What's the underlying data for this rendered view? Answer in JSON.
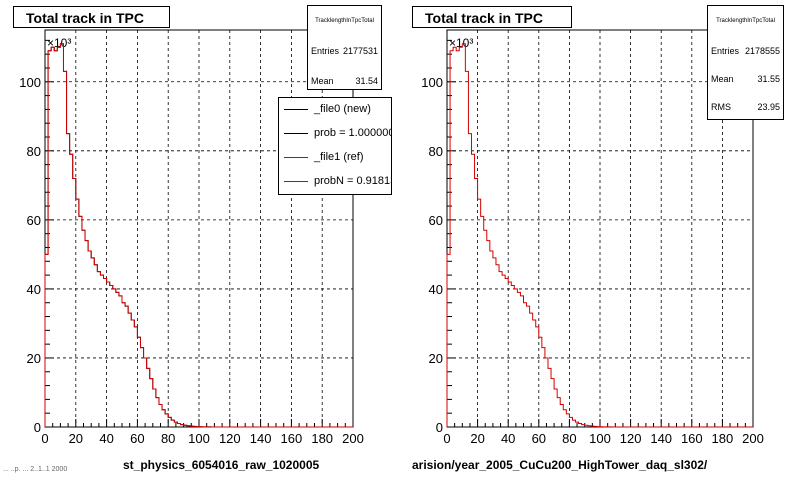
{
  "chart_data": [
    {
      "type": "histogram",
      "title": "Total track in TPC",
      "stats": {
        "name": "TracklengthInTpcTotal",
        "entries_label": "Entries",
        "entries": "2177531",
        "mean_label": "Mean",
        "mean": "31.54"
      },
      "legend": [
        {
          "label": "_file0 (new)",
          "color": "#000000"
        },
        {
          "label": "prob = 1.000000",
          "color": "#000000"
        },
        {
          "label": "_file1 (ref)",
          "color": "#d40000"
        },
        {
          "label": "probN = 0.918137",
          "color": "#d40000"
        }
      ],
      "xlabel": "st_physics_6054016_raw_1020005",
      "xlim": [
        0,
        200
      ],
      "ylim": [
        0,
        115000
      ],
      "y_exponent": "×10³",
      "xticks": [
        "0",
        "20",
        "40",
        "60",
        "80",
        "100",
        "120",
        "140",
        "160",
        "180",
        "200"
      ],
      "yticks": [
        "0",
        "20",
        "40",
        "60",
        "80",
        "100"
      ],
      "grid": true,
      "bin_width": 2,
      "series": [
        {
          "values": [
            50,
            109,
            110,
            109,
            110,
            111,
            103,
            85,
            79,
            72,
            66,
            61,
            57,
            54,
            51,
            49,
            47,
            45,
            44,
            43,
            42,
            41,
            40,
            39,
            38,
            36,
            35,
            33,
            31,
            29,
            26,
            23,
            20,
            17,
            14,
            11,
            8.5,
            6.5,
            5,
            3.8,
            2.8,
            2,
            1.4,
            1,
            0.7,
            0.5,
            0.35,
            0.25,
            0.18,
            0.12,
            0.08,
            0.05,
            0.03,
            0.02,
            0.01,
            0,
            0,
            0,
            0,
            0,
            0,
            0,
            0,
            0,
            0,
            0,
            0,
            0,
            0,
            0,
            0,
            0,
            0,
            0,
            0,
            0,
            0,
            0,
            0,
            0,
            0,
            0,
            0,
            0,
            0,
            0,
            0,
            0,
            0,
            0,
            0,
            0,
            0,
            0,
            0,
            0,
            0,
            0,
            0,
            0
          ]
        }
      ]
    },
    {
      "type": "histogram",
      "title": "Total track in TPC",
      "stats": {
        "name": "TracklengthInTpcTotal",
        "entries_label": "Entries",
        "entries": "2178555",
        "mean_label": "Mean",
        "mean": "31.55",
        "rms_label": "RMS",
        "rms": "23.95"
      },
      "xlabel": "arision/year_2005_CuCu200_HighTower_daq_sl302/",
      "xlim": [
        0,
        200
      ],
      "ylim": [
        0,
        115000
      ],
      "y_exponent": "×10³",
      "xticks": [
        "0",
        "20",
        "40",
        "60",
        "80",
        "100",
        "120",
        "140",
        "160",
        "180",
        "200"
      ],
      "yticks": [
        "0",
        "20",
        "40",
        "60",
        "80",
        "100"
      ],
      "grid": true,
      "bin_width": 2,
      "series": [
        {
          "values": [
            50,
            109,
            110,
            109,
            110,
            111,
            103,
            85,
            79,
            72,
            66,
            61,
            57,
            54,
            51,
            49,
            47,
            45,
            44,
            43,
            42,
            41,
            40,
            39,
            38,
            36,
            35,
            33,
            31,
            29,
            26,
            23,
            20,
            17,
            14,
            11,
            8.5,
            6.5,
            5,
            3.8,
            2.8,
            2,
            1.4,
            1,
            0.7,
            0.5,
            0.35,
            0.25,
            0.18,
            0.12,
            0.08,
            0.05,
            0.03,
            0.02,
            0.01,
            0,
            0,
            0,
            0,
            0,
            0,
            0,
            0,
            0,
            0,
            0,
            0,
            0,
            0,
            0,
            0,
            0,
            0,
            0,
            0,
            0,
            0,
            0,
            0,
            0,
            0,
            0,
            0,
            0,
            0,
            0,
            0,
            0,
            0,
            0,
            0,
            0,
            0,
            0,
            0,
            0,
            0,
            0,
            0,
            0
          ]
        }
      ]
    }
  ],
  "footer_text": "... ..p. ... 2..1..1 2000"
}
